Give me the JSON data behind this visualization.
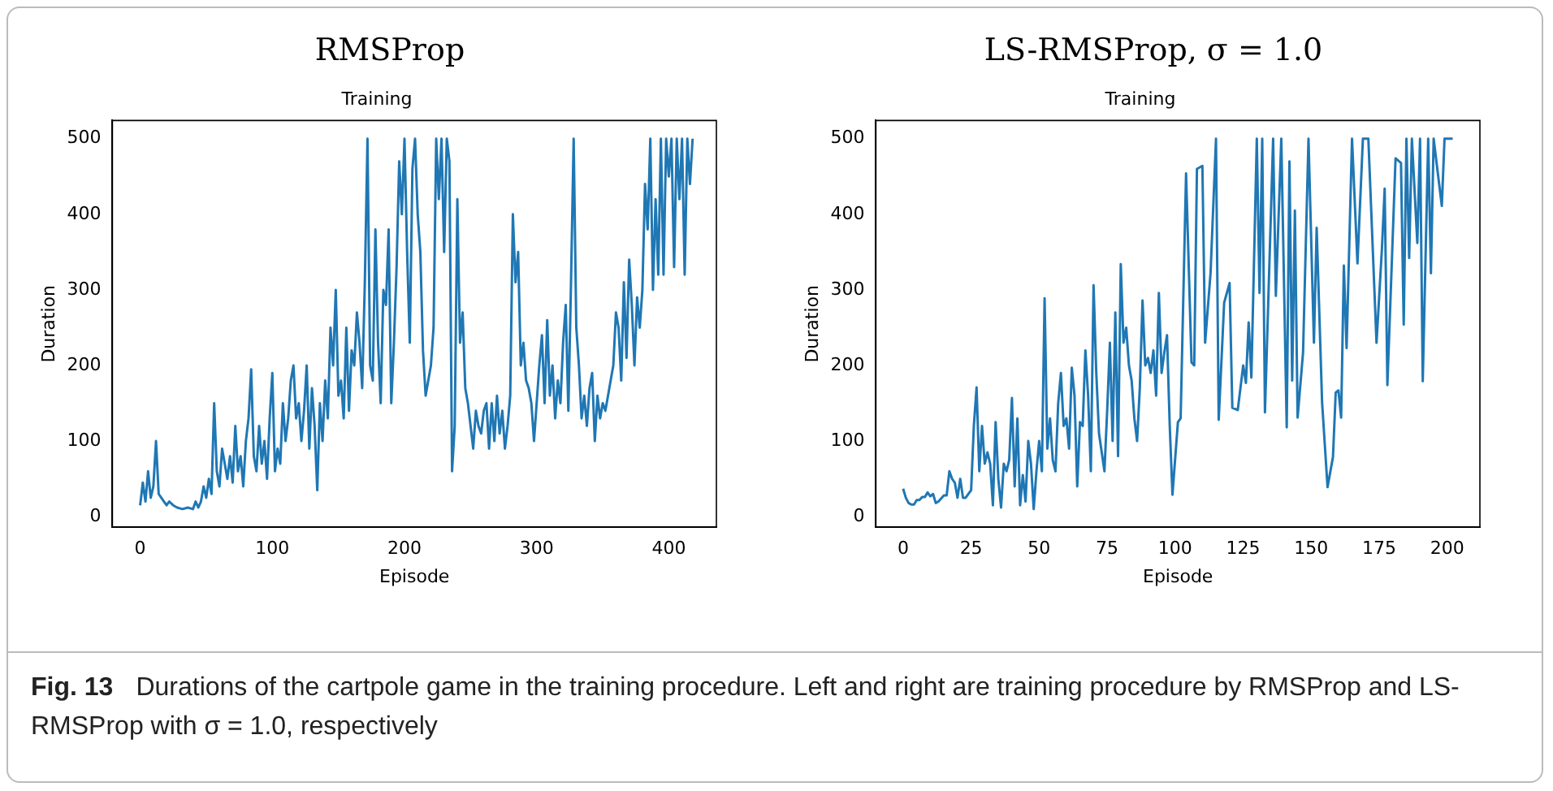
{
  "chart_data": [
    {
      "type": "line",
      "title": "RMSProp",
      "subtitle": "Training",
      "xlabel": "Episode",
      "ylabel": "Duration",
      "xlim": [
        -21,
        436
      ],
      "ylim": [
        -14,
        524
      ],
      "xticks": [
        0,
        100,
        200,
        300,
        400
      ],
      "yticks": [
        0,
        100,
        200,
        300,
        400,
        500
      ],
      "annotations": [
        "Fig. 13",
        "Durations of the cartpole game in the training procedure. Left and right are training procedure by RMSProp and LS-RMSProp with σ = 1.0, respectively"
      ],
      "series": [
        {
          "color": "#1f77b4",
          "x": [
            0,
            2,
            4,
            6,
            8,
            10,
            12,
            14,
            16,
            18,
            20,
            22,
            25,
            28,
            32,
            36,
            40,
            42,
            44,
            46,
            48,
            50,
            52,
            54,
            56,
            58,
            60,
            62,
            64,
            66,
            68,
            70,
            72,
            74,
            76,
            78,
            80,
            82,
            84,
            86,
            88,
            90,
            92,
            94,
            96,
            98,
            100,
            102,
            104,
            106,
            108,
            110,
            112,
            114,
            116,
            118,
            120,
            122,
            124,
            126,
            128,
            130,
            132,
            134,
            136,
            138,
            140,
            142,
            144,
            146,
            148,
            150,
            152,
            154,
            156,
            158,
            160,
            162,
            164,
            166,
            168,
            170,
            172,
            174,
            176,
            178,
            180,
            182,
            184,
            186,
            188,
            190,
            192,
            194,
            196,
            198,
            200,
            202,
            204,
            206,
            208,
            210,
            212,
            214,
            216,
            218,
            220,
            222,
            224,
            226,
            228,
            230,
            232,
            234,
            236,
            238,
            240,
            242,
            244,
            246,
            248,
            250,
            252,
            254,
            256,
            258,
            260,
            262,
            264,
            266,
            268,
            270,
            272,
            274,
            276,
            278,
            280,
            282,
            284,
            286,
            288,
            290,
            292,
            294,
            296,
            298,
            300,
            302,
            304,
            306,
            308,
            310,
            312,
            314,
            316,
            318,
            320,
            322,
            324,
            326,
            328,
            330,
            332,
            334,
            336,
            338,
            340,
            342,
            344,
            346,
            348,
            350,
            352,
            354,
            356,
            358,
            360,
            362,
            364,
            366,
            368,
            370,
            372,
            374,
            376,
            378,
            380,
            382,
            384,
            386,
            388,
            390,
            392,
            394,
            396,
            398,
            400,
            402,
            404,
            406,
            408,
            410,
            412,
            414,
            416,
            418
          ],
          "values": [
            15,
            45,
            20,
            60,
            25,
            40,
            100,
            30,
            25,
            20,
            15,
            20,
            15,
            12,
            10,
            12,
            10,
            20,
            12,
            20,
            40,
            25,
            50,
            30,
            150,
            60,
            40,
            90,
            70,
            50,
            80,
            45,
            120,
            60,
            80,
            40,
            100,
            130,
            195,
            80,
            60,
            120,
            70,
            100,
            50,
            130,
            190,
            60,
            90,
            70,
            150,
            100,
            130,
            180,
            200,
            130,
            150,
            100,
            140,
            200,
            90,
            170,
            120,
            35,
            150,
            100,
            180,
            130,
            250,
            200,
            300,
            160,
            180,
            130,
            250,
            140,
            220,
            200,
            270,
            230,
            170,
            310,
            500,
            200,
            180,
            380,
            230,
            150,
            300,
            280,
            380,
            150,
            230,
            330,
            470,
            400,
            500,
            350,
            230,
            460,
            500,
            400,
            350,
            220,
            160,
            180,
            200,
            250,
            500,
            420,
            500,
            350,
            500,
            470,
            60,
            120,
            420,
            230,
            270,
            170,
            150,
            120,
            90,
            140,
            120,
            110,
            140,
            150,
            90,
            150,
            100,
            160,
            110,
            140,
            90,
            120,
            160,
            400,
            310,
            350,
            200,
            230,
            180,
            170,
            150,
            100,
            150,
            200,
            240,
            150,
            260,
            160,
            200,
            130,
            180,
            150,
            230,
            280,
            140,
            310,
            500,
            250,
            200,
            130,
            160,
            120,
            170,
            190,
            100,
            160,
            130,
            150,
            140,
            160,
            180,
            200,
            270,
            250,
            180,
            310,
            210,
            340,
            280,
            200,
            290,
            250,
            300,
            440,
            380,
            500,
            300,
            420,
            320,
            500,
            320,
            500,
            450,
            500,
            330,
            500,
            420,
            500,
            320,
            500,
            440,
            500
          ]
        }
      ]
    },
    {
      "type": "line",
      "title": "LS-RMSProp, σ = 1.0",
      "subtitle": "Training",
      "xlabel": "Episode",
      "ylabel": "Duration",
      "xlim": [
        -10,
        212
      ],
      "ylim": [
        -14,
        524
      ],
      "xticks": [
        0,
        25,
        50,
        75,
        100,
        125,
        150,
        175,
        200
      ],
      "yticks": [
        0,
        100,
        200,
        300,
        400,
        500
      ],
      "series": [
        {
          "color": "#1f77b4",
          "x": [
            0,
            1,
            2,
            3,
            4,
            5,
            6,
            7,
            8,
            9,
            10,
            11,
            12,
            13,
            14,
            15,
            16,
            17,
            18,
            19,
            20,
            21,
            22,
            23,
            24,
            25,
            26,
            27,
            28,
            29,
            30,
            31,
            32,
            33,
            34,
            35,
            36,
            37,
            38,
            39,
            40,
            41,
            42,
            43,
            44,
            45,
            46,
            47,
            48,
            49,
            50,
            51,
            52,
            53,
            54,
            55,
            56,
            57,
            58,
            59,
            60,
            61,
            62,
            63,
            64,
            65,
            66,
            67,
            68,
            69,
            70,
            71,
            72,
            73,
            74,
            75,
            76,
            77,
            78,
            79,
            80,
            81,
            82,
            83,
            84,
            85,
            86,
            87,
            88,
            89,
            90,
            91,
            92,
            93,
            94,
            95,
            96,
            97,
            98,
            99,
            101,
            102,
            104,
            106,
            107,
            108,
            110,
            111,
            113,
            115,
            116,
            118,
            120,
            121,
            123,
            125,
            126,
            127,
            128,
            130,
            131,
            132,
            133,
            136,
            137,
            139,
            141,
            142,
            143,
            144,
            145,
            147,
            149,
            151,
            152,
            154,
            156,
            158,
            159,
            160,
            161,
            162,
            163,
            165,
            167,
            169,
            171,
            174,
            176,
            177,
            178,
            181,
            183,
            184,
            185,
            186,
            187,
            189,
            190,
            191,
            193,
            194,
            195,
            198,
            199,
            202
          ],
          "values": [
            37,
            25,
            18,
            16,
            16,
            22,
            22,
            26,
            26,
            32,
            27,
            30,
            18,
            20,
            24,
            28,
            28,
            60,
            50,
            45,
            25,
            50,
            25,
            25,
            30,
            35,
            120,
            171,
            60,
            120,
            70,
            85,
            70,
            15,
            125,
            50,
            12,
            70,
            60,
            75,
            157,
            40,
            130,
            15,
            55,
            20,
            100,
            70,
            10,
            60,
            100,
            60,
            289,
            90,
            130,
            75,
            60,
            150,
            190,
            120,
            130,
            90,
            197,
            160,
            40,
            125,
            120,
            220,
            160,
            60,
            306,
            190,
            110,
            85,
            60,
            140,
            230,
            100,
            270,
            80,
            334,
            230,
            250,
            200,
            180,
            130,
            100,
            170,
            286,
            200,
            210,
            190,
            220,
            160,
            296,
            190,
            217,
            240,
            120,
            29,
            125,
            130,
            454,
            204,
            200,
            460,
            464,
            230,
            322,
            500,
            128,
            283,
            309,
            144,
            141,
            200,
            177,
            257,
            184,
            500,
            296,
            500,
            138,
            500,
            292,
            500,
            118,
            470,
            180,
            405,
            131,
            217,
            500,
            230,
            382,
            151,
            39,
            79,
            164,
            167,
            131,
            332,
            223,
            500,
            335,
            500,
            500,
            230,
            355,
            434,
            174,
            474,
            468,
            254,
            500,
            342,
            500,
            362,
            500,
            179,
            500,
            322,
            500,
            411,
            500,
            500
          ]
        }
      ]
    }
  ]
}
